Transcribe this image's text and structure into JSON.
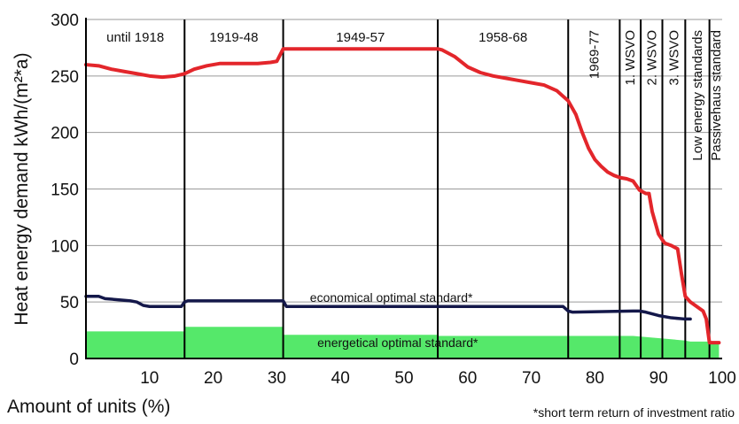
{
  "chart_data": {
    "type": "area",
    "title": "",
    "xlabel": "Amount of units (%)",
    "ylabel": "Heat energy demand kWh/(m²*a)",
    "xlim": [
      0,
      100
    ],
    "ylim": [
      0,
      300
    ],
    "x_ticks": [
      10,
      20,
      30,
      40,
      50,
      60,
      70,
      80,
      90,
      100
    ],
    "y_ticks": [
      0,
      50,
      100,
      150,
      200,
      250,
      300
    ],
    "grid": "horizontal",
    "periods": [
      {
        "label": "until 1918",
        "x_start": 0,
        "x_end": 15.5,
        "orientation": "horizontal"
      },
      {
        "label": "1919-48",
        "x_start": 15.5,
        "x_end": 31,
        "orientation": "horizontal"
      },
      {
        "label": "1949-57",
        "x_start": 31,
        "x_end": 55.3,
        "orientation": "horizontal"
      },
      {
        "label": "1958-68",
        "x_start": 55.3,
        "x_end": 75.8,
        "orientation": "horizontal"
      },
      {
        "label": "1969-77",
        "x_start": 75.8,
        "x_end": 83.9,
        "orientation": "vertical"
      },
      {
        "label": "1. WSVO",
        "x_start": 83.9,
        "x_end": 87.2,
        "orientation": "vertical"
      },
      {
        "label": "2. WSVO",
        "x_start": 87.2,
        "x_end": 90.6,
        "orientation": "vertical"
      },
      {
        "label": "3. WSVO",
        "x_start": 90.6,
        "x_end": 94.2,
        "orientation": "vertical"
      },
      {
        "label": "Low energy standards",
        "x_start": 94.2,
        "x_end": 98.0,
        "orientation": "vertical"
      },
      {
        "label": "Passivehaus standard",
        "x_start": 98.0,
        "x_end": 100,
        "orientation": "vertical"
      }
    ],
    "series": [
      {
        "name": "",
        "color": "#e3262b",
        "style": "line",
        "x": [
          0,
          2,
          4,
          6,
          8,
          10,
          12,
          14,
          15.5,
          17,
          19,
          21,
          23,
          25,
          27,
          29,
          30,
          31,
          35,
          40,
          45,
          50,
          54,
          55.3,
          56,
          58,
          60,
          62,
          64,
          66,
          68,
          70,
          72,
          74,
          75.8,
          77,
          78,
          79,
          80,
          81,
          82,
          83,
          84,
          85,
          86,
          87,
          88,
          88.5,
          89,
          89.5,
          90,
          90.6,
          91,
          92,
          93,
          93.6,
          94.2,
          95,
          96,
          97,
          97.5,
          98,
          98.5,
          99,
          99.5
        ],
        "y": [
          260,
          259,
          256,
          254,
          252,
          250,
          249,
          250,
          252,
          256,
          259,
          261,
          261,
          261,
          261,
          262,
          263,
          274,
          274,
          274,
          274,
          274,
          274,
          274,
          273,
          267,
          258,
          253,
          250,
          248,
          246,
          244,
          242,
          237,
          228,
          216,
          200,
          186,
          176,
          170,
          165,
          162,
          160,
          159,
          157,
          149,
          146,
          146,
          130,
          120,
          110,
          105,
          102,
          100,
          97,
          75,
          55,
          50,
          46,
          42,
          35,
          14,
          14,
          14,
          14
        ]
      },
      {
        "name": "economical optimal standard*",
        "color": "#14184a",
        "style": "line",
        "x": [
          0,
          2,
          3,
          5,
          7,
          8,
          9,
          10,
          15,
          15.5,
          16,
          31,
          31.5,
          55,
          75,
          75.8,
          76.5,
          86,
          87,
          88,
          90,
          92,
          94,
          95
        ],
        "y": [
          55,
          55,
          53,
          52,
          51,
          50,
          47,
          46,
          46,
          50,
          51,
          51,
          46,
          46,
          46,
          42,
          41,
          42,
          42,
          41,
          38,
          36,
          35,
          35
        ]
      },
      {
        "name": "energetical optimal standard*",
        "color": "#55e86a",
        "style": "area",
        "x": [
          0,
          15.5,
          15.6,
          31,
          31.1,
          55.3,
          55.4,
          86,
          88,
          90,
          92,
          94,
          95,
          96,
          97,
          98,
          98.2,
          99.5
        ],
        "y": [
          24,
          24,
          28,
          28,
          21,
          21,
          20,
          20,
          19,
          18,
          17,
          16,
          15,
          15,
          15,
          15,
          14,
          14
        ]
      }
    ],
    "annotations": [
      {
        "text": "economical optimal standard*",
        "x": 48,
        "y": 50
      },
      {
        "text": "energetical optimal standard*",
        "x": 49,
        "y": 10
      }
    ],
    "footnote": "*short term return of investment ratio"
  }
}
